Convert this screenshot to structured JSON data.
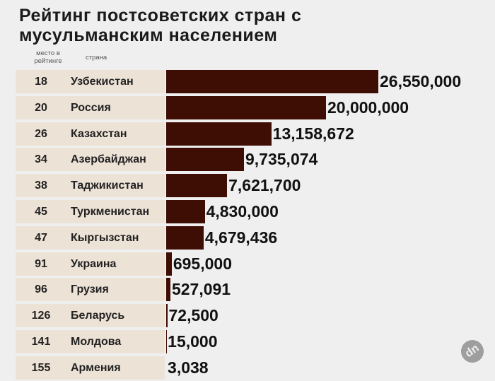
{
  "chart_data": {
    "type": "bar",
    "orientation": "horizontal",
    "title": "Рейтинг постсоветских стран с мусульманским населением",
    "column_headers": {
      "rank": "место в рейтинге",
      "country": "страна"
    },
    "rows": [
      {
        "rank": "18",
        "country": "Узбекистан",
        "value": 26550000,
        "label": "26,550,000"
      },
      {
        "rank": "20",
        "country": "Россия",
        "value": 20000000,
        "label": "20,000,000"
      },
      {
        "rank": "26",
        "country": "Казахстан",
        "value": 13158672,
        "label": "13,158,672"
      },
      {
        "rank": "34",
        "country": "Азербайджан",
        "value": 9735074,
        "label": "9,735,074"
      },
      {
        "rank": "38",
        "country": "Таджикистан",
        "value": 7621700,
        "label": "7,621,700"
      },
      {
        "rank": "45",
        "country": "Туркменистан",
        "value": 4830000,
        "label": "4,830,000"
      },
      {
        "rank": "47",
        "country": "Кыргызстан",
        "value": 4679436,
        "label": "4,679,436"
      },
      {
        "rank": "91",
        "country": "Украина",
        "value": 695000,
        "label": "695,000"
      },
      {
        "rank": "96",
        "country": "Грузия",
        "value": 527091,
        "label": "527,091"
      },
      {
        "rank": "126",
        "country": "Беларусь",
        "value": 72500,
        "label": "72,500"
      },
      {
        "rank": "141",
        "country": "Молдова",
        "value": 15000,
        "label": "15,000"
      },
      {
        "rank": "155",
        "country": "Армения",
        "value": 3038,
        "label": "3,038"
      }
    ],
    "bar_color": "#3e0d04",
    "band_color": "#ece2d6",
    "grid": false
  },
  "watermark": "dn"
}
